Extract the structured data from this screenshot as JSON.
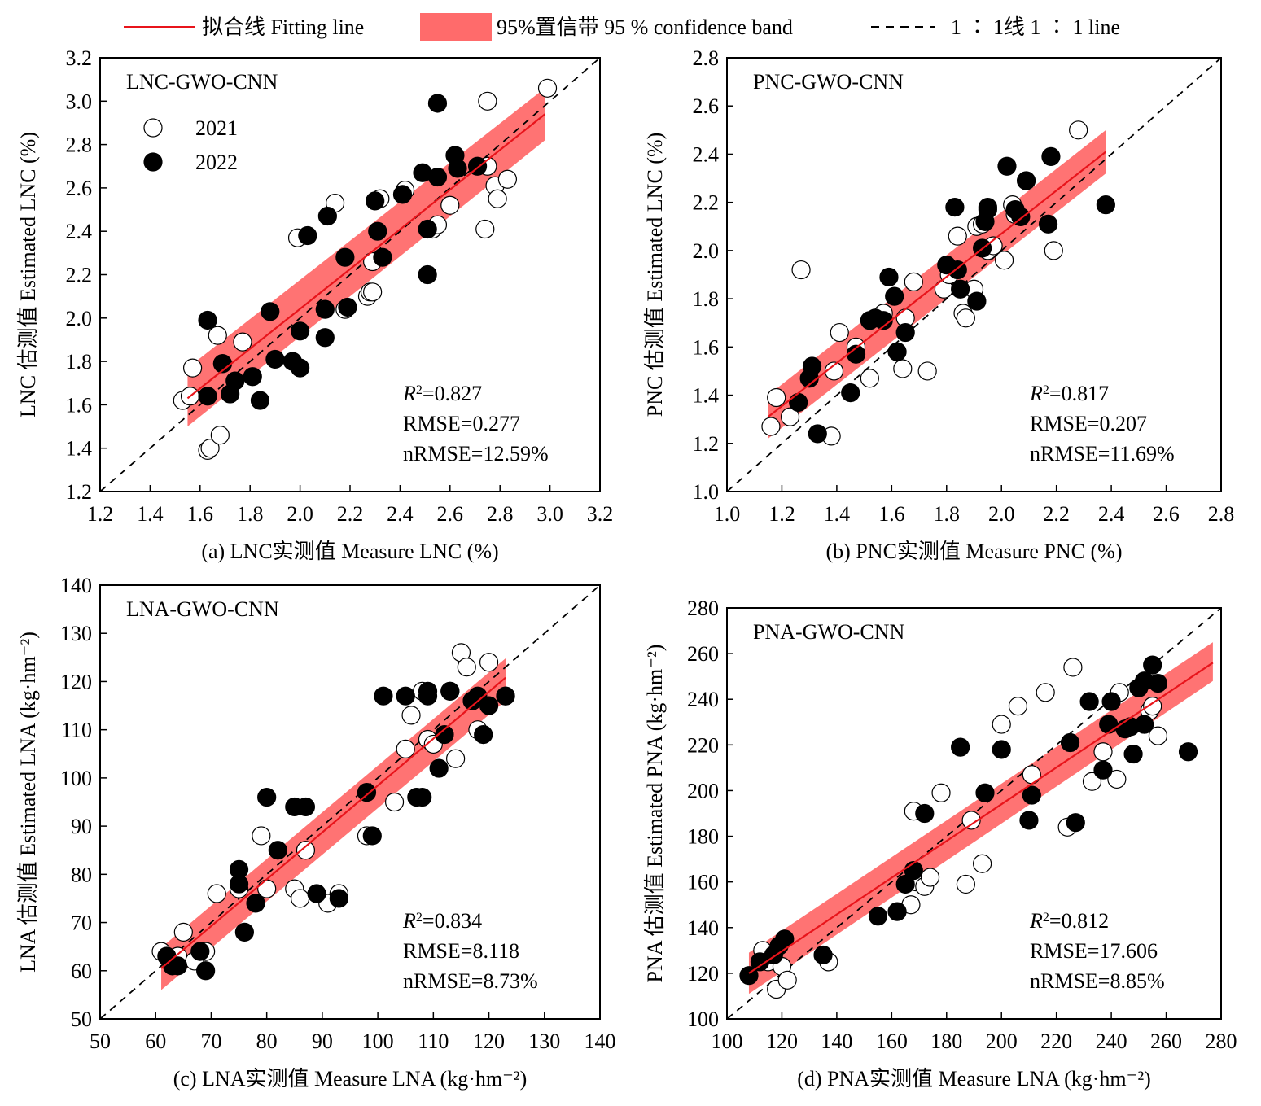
{
  "legend": {
    "fit_label": "拟合线 Fitting line",
    "band_label": "95%置信带 95 % confidence band",
    "oneone_label": "1 ∶ 1线 1 ∶ 1 line"
  },
  "series_labels": {
    "y2021": "2021",
    "y2022": "2022"
  },
  "colors": {
    "fit": "#e8141b",
    "band": "#ff6b6b",
    "marker_2022": "#000000",
    "marker_2021": "#ffffff"
  },
  "chart_data": [
    {
      "type": "scatter",
      "panel": "LNC-GWO-CNN",
      "xlabel": "(a) LNC实测值 Measure LNC (%)",
      "ylabel": "LNC 估测值 Estimated LNC (%)",
      "xlim": [
        1.2,
        3.2
      ],
      "ylim": [
        1.2,
        3.2
      ],
      "xticks": [
        "1.2",
        "1.4",
        "1.6",
        "1.8",
        "2.0",
        "2.2",
        "2.4",
        "2.6",
        "2.8",
        "3.0",
        "3.2"
      ],
      "yticks": [
        "1.2",
        "1.4",
        "1.6",
        "1.8",
        "2.0",
        "2.2",
        "2.4",
        "2.6",
        "2.8",
        "3.0",
        "3.2"
      ],
      "stats": {
        "r2": "0.827",
        "rmse": "RMSE=0.277",
        "nrmse": "nRMSE=12.59%"
      },
      "fit": {
        "x": [
          1.55,
          2.98
        ],
        "y": [
          1.63,
          2.94
        ]
      },
      "band": {
        "x": [
          1.55,
          2.98
        ],
        "lower": [
          1.5,
          2.82
        ],
        "upper": [
          1.77,
          3.06
        ]
      },
      "series": [
        {
          "name": "2021",
          "x": [
            1.53,
            1.56,
            1.57,
            1.63,
            1.64,
            1.67,
            1.68,
            1.69,
            1.77,
            1.99,
            2.14,
            2.18,
            2.27,
            2.28,
            2.29,
            2.32,
            2.42,
            2.53,
            2.55,
            2.6,
            2.74,
            2.75,
            2.75,
            2.78,
            2.79,
            2.83,
            2.99,
            2.29
          ],
          "y": [
            1.62,
            1.64,
            1.77,
            1.39,
            1.4,
            1.92,
            1.46,
            1.79,
            1.89,
            2.37,
            2.53,
            2.04,
            2.1,
            2.12,
            2.26,
            2.55,
            2.59,
            2.41,
            2.43,
            2.52,
            2.41,
            2.7,
            3.0,
            2.61,
            2.55,
            2.64,
            3.06,
            2.12
          ]
        },
        {
          "name": "2022",
          "x": [
            1.63,
            1.63,
            1.69,
            1.72,
            1.74,
            1.81,
            1.84,
            1.88,
            1.9,
            1.97,
            2.0,
            2.0,
            2.03,
            2.1,
            2.1,
            2.11,
            2.18,
            2.19,
            2.3,
            2.31,
            2.33,
            2.41,
            2.49,
            2.51,
            2.51,
            2.55,
            2.55,
            2.62,
            2.63,
            2.71
          ],
          "y": [
            1.99,
            1.64,
            1.79,
            1.65,
            1.71,
            1.73,
            1.62,
            2.03,
            1.81,
            1.8,
            1.94,
            1.77,
            2.38,
            1.91,
            2.04,
            2.47,
            2.28,
            2.05,
            2.54,
            2.4,
            2.28,
            2.57,
            2.67,
            2.41,
            2.2,
            2.65,
            2.99,
            2.75,
            2.69,
            2.7
          ]
        }
      ]
    },
    {
      "type": "scatter",
      "panel": "PNC-GWO-CNN",
      "xlabel": "(b) PNC实测值 Measure PNC (%)",
      "ylabel": "PNC 估测值 Estimated LNC (%)",
      "xlim": [
        1.0,
        2.8
      ],
      "ylim": [
        1.0,
        2.8
      ],
      "xticks": [
        "1.0",
        "1.2",
        "1.4",
        "1.6",
        "1.8",
        "2.0",
        "2.2",
        "2.4",
        "2.6",
        "2.8"
      ],
      "yticks": [
        "1.0",
        "1.2",
        "1.4",
        "1.6",
        "1.8",
        "2.0",
        "2.2",
        "2.4",
        "2.6",
        "2.8"
      ],
      "stats": {
        "r2": "0.817",
        "rmse": "RMSE=0.207",
        "nrmse": "nRMSE=11.69%"
      },
      "fit": {
        "x": [
          1.15,
          2.38
        ],
        "y": [
          1.31,
          2.41
        ]
      },
      "band": {
        "x": [
          1.15,
          2.38
        ],
        "lower": [
          1.22,
          2.32
        ],
        "upper": [
          1.4,
          2.5
        ]
      },
      "series": [
        {
          "name": "2021",
          "x": [
            1.16,
            1.18,
            1.23,
            1.27,
            1.38,
            1.39,
            1.41,
            1.47,
            1.52,
            1.57,
            1.64,
            1.65,
            1.73,
            1.79,
            1.81,
            1.84,
            1.86,
            1.87,
            1.9,
            1.91,
            1.95,
            1.97,
            2.01,
            2.04,
            2.05,
            2.19,
            2.28,
            1.68,
            1.93
          ],
          "y": [
            1.27,
            1.39,
            1.31,
            1.92,
            1.23,
            1.5,
            1.66,
            1.6,
            1.47,
            1.74,
            1.51,
            1.72,
            1.5,
            1.84,
            1.9,
            2.06,
            1.74,
            1.72,
            1.84,
            2.1,
            2.0,
            2.02,
            1.96,
            2.19,
            2.15,
            2.0,
            2.5,
            1.87,
            2.11
          ]
        },
        {
          "name": "2022",
          "x": [
            1.26,
            1.3,
            1.31,
            1.33,
            1.45,
            1.47,
            1.52,
            1.54,
            1.57,
            1.59,
            1.61,
            1.62,
            1.65,
            1.8,
            1.83,
            1.84,
            1.85,
            1.91,
            1.93,
            1.94,
            1.95,
            1.95,
            2.02,
            2.05,
            2.07,
            2.09,
            2.17,
            2.18,
            2.38
          ],
          "y": [
            1.37,
            1.47,
            1.52,
            1.24,
            1.41,
            1.57,
            1.71,
            1.72,
            1.71,
            1.89,
            1.81,
            1.58,
            1.66,
            1.94,
            2.18,
            1.92,
            1.84,
            1.79,
            2.01,
            2.12,
            2.17,
            2.18,
            2.35,
            2.17,
            2.14,
            2.29,
            2.11,
            2.39,
            2.19
          ]
        }
      ]
    },
    {
      "type": "scatter",
      "panel": "LNA-GWO-CNN",
      "xlabel": "(c) LNA实测值 Measure LNA (kg·hm⁻²)",
      "ylabel": "LNA 估测值 Estimated LNA (kg·hm⁻²)",
      "xlim": [
        50,
        140
      ],
      "ylim": [
        50,
        140
      ],
      "xticks": [
        "50",
        "60",
        "70",
        "80",
        "90",
        "100",
        "110",
        "120",
        "130",
        "140"
      ],
      "yticks": [
        "50",
        "60",
        "70",
        "80",
        "90",
        "100",
        "110",
        "120",
        "130",
        "140"
      ],
      "stats": {
        "r2": "0.834",
        "rmse": "RMSE=8.118",
        "nrmse": "nRMSE=8.73%"
      },
      "fit": {
        "x": [
          61,
          123
        ],
        "y": [
          60.5,
          120.8
        ]
      },
      "band": {
        "x": [
          61,
          123
        ],
        "lower": [
          56.0,
          116.0
        ],
        "upper": [
          64.8,
          124.8
        ]
      },
      "series": [
        {
          "name": "2021",
          "x": [
            61,
            64,
            65,
            67,
            69,
            71,
            75,
            79,
            80,
            85,
            86,
            87,
            91,
            93,
            98,
            103,
            105,
            106,
            108,
            109,
            110,
            113,
            114,
            115,
            116,
            117,
            118,
            120,
            123
          ],
          "y": [
            64,
            63,
            68,
            62,
            64,
            76,
            77,
            88,
            77,
            77,
            75,
            85,
            74,
            76,
            88,
            95,
            106,
            113,
            118,
            108,
            107,
            118,
            104,
            126,
            123,
            116,
            110,
            124,
            117
          ]
        },
        {
          "name": "2022",
          "x": [
            62,
            63,
            64,
            68,
            69,
            75,
            75,
            76,
            78,
            82,
            80,
            85,
            87,
            89,
            93,
            99,
            98,
            101,
            105,
            107,
            108,
            109,
            111,
            112,
            113,
            117,
            118,
            119,
            120,
            123,
            109
          ],
          "y": [
            63,
            61,
            61,
            64,
            60,
            81,
            78,
            68,
            74,
            85,
            96,
            94,
            94,
            76,
            75,
            88,
            97,
            117,
            117,
            96,
            96,
            118,
            102,
            109,
            118,
            116,
            117,
            109,
            115,
            117,
            117
          ]
        }
      ]
    },
    {
      "type": "scatter",
      "panel": "PNA-GWO-CNN",
      "xlabel": "(d) PNA实测值 Measure LNA (kg·hm⁻²)",
      "ylabel": "PNA 估测值 Estimated PNA (kg·hm⁻²)",
      "xlim": [
        100,
        280
      ],
      "ylim": [
        100,
        280
      ],
      "xticks": [
        "100",
        "120",
        "140",
        "160",
        "180",
        "200",
        "220",
        "240",
        "260",
        "280"
      ],
      "yticks": [
        "100",
        "120",
        "140",
        "160",
        "180",
        "200",
        "220",
        "240",
        "260",
        "280"
      ],
      "stats": {
        "r2": "0.812",
        "rmse": "RMSE=17.606",
        "nrmse": "nRMSE=8.85%"
      },
      "fit": {
        "x": [
          108,
          277
        ],
        "y": [
          120,
          256
        ]
      },
      "band": {
        "x": [
          108,
          277
        ],
        "lower": [
          111,
          248
        ],
        "upper": [
          129,
          265
        ]
      },
      "series": [
        {
          "name": "2021",
          "x": [
            113,
            115,
            118,
            120,
            122,
            137,
            167,
            168,
            169,
            172,
            174,
            178,
            187,
            189,
            193,
            200,
            206,
            211,
            216,
            224,
            226,
            233,
            237,
            242,
            243,
            252,
            254,
            255,
            257
          ],
          "y": [
            130,
            125,
            113,
            123,
            117,
            125,
            150,
            191,
            160,
            158,
            162,
            199,
            159,
            187,
            168,
            229,
            237,
            207,
            243,
            184,
            254,
            204,
            217,
            205,
            243,
            229,
            235,
            237,
            224
          ]
        },
        {
          "name": "2022",
          "x": [
            108,
            112,
            117,
            119,
            121,
            135,
            155,
            162,
            165,
            168,
            172,
            185,
            194,
            200,
            210,
            211,
            225,
            227,
            232,
            237,
            239,
            240,
            245,
            247,
            248,
            250,
            252,
            255,
            257,
            268,
            252
          ],
          "y": [
            119,
            125,
            128,
            132,
            135,
            128,
            145,
            147,
            159,
            165,
            190,
            219,
            199,
            218,
            187,
            198,
            221,
            186,
            239,
            209,
            229,
            239,
            227,
            228,
            216,
            245,
            229,
            255,
            247,
            217,
            248
          ]
        }
      ]
    }
  ]
}
